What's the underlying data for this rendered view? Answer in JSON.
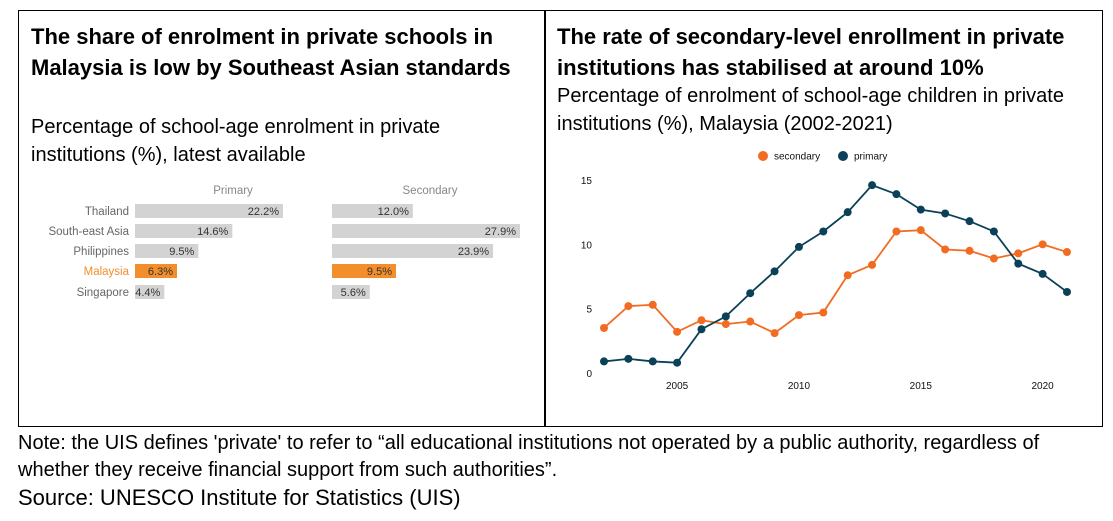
{
  "left_panel": {
    "title": "The share of enrolment in private schools in Malaysia is low by Southeast Asian standards",
    "subtitle": "Percentage of school-age enrolment in private institutions (%), latest available"
  },
  "right_panel": {
    "title": "The rate of secondary-level enrollment in private institutions has stabilised at around 10%",
    "subtitle": "Percentage of enrolment of school-age children in private institutions (%), Malaysia (2002-2021)"
  },
  "note": "Note: the  UIS defines 'private' to refer to “all educational institutions not operated by a public authority, regardless of whether they receive financial support from such authorities”.",
  "source": "Source: UNESCO Institute for Statistics (UIS)",
  "chart_data": [
    {
      "type": "bar",
      "orientation": "horizontal",
      "categories": [
        "Thailand",
        "South-east Asia",
        "Philippines",
        "Malaysia",
        "Singapore"
      ],
      "highlight": "Malaysia",
      "series": [
        {
          "name": "Primary",
          "values": [
            22.2,
            14.6,
            9.5,
            6.3,
            4.4
          ],
          "labels": [
            "22.2%",
            "14.6%",
            "9.5%",
            "6.3%",
            "4.4%"
          ]
        },
        {
          "name": "Secondary",
          "values": [
            12.0,
            27.9,
            23.9,
            9.5,
            5.6
          ],
          "labels": [
            "12.0%",
            "27.9%",
            "23.9%",
            "9.5%",
            "5.6%"
          ]
        }
      ],
      "colors": {
        "default": "#d3d3d3",
        "highlight": "#f28e2b"
      }
    },
    {
      "type": "line",
      "x": [
        2002,
        2003,
        2004,
        2005,
        2006,
        2007,
        2008,
        2009,
        2010,
        2011,
        2012,
        2013,
        2014,
        2015,
        2016,
        2017,
        2018,
        2019,
        2020,
        2021
      ],
      "series": [
        {
          "name": "secondary",
          "color": "#f26b21",
          "values": [
            3.5,
            5.2,
            5.3,
            3.2,
            4.1,
            3.8,
            4.0,
            3.1,
            4.5,
            4.7,
            7.6,
            8.4,
            11.0,
            11.1,
            9.6,
            9.5,
            8.9,
            9.3,
            10.0,
            9.4
          ]
        },
        {
          "name": "primary",
          "color": "#0b4158",
          "values": [
            0.9,
            1.1,
            0.9,
            0.8,
            3.4,
            4.4,
            6.2,
            7.9,
            9.8,
            11.0,
            12.5,
            14.6,
            13.9,
            12.7,
            12.4,
            11.8,
            11.0,
            8.5,
            7.7,
            6.3
          ]
        }
      ],
      "xticks": [
        2005,
        2010,
        2015,
        2020
      ],
      "yticks": [
        0,
        5,
        10,
        15
      ],
      "xlim": [
        2002,
        2021
      ],
      "ylim": [
        0,
        15
      ],
      "legend": "top-center",
      "grid": false
    }
  ]
}
